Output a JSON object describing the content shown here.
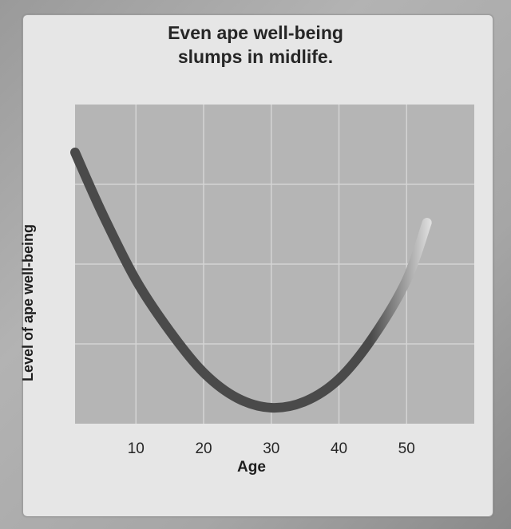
{
  "chart_data": {
    "type": "line",
    "title_lines": [
      "Even ape well-being",
      "slumps in midlife."
    ],
    "xlabel": "Age",
    "ylabel": "Level of ape well-being",
    "xlim": [
      1,
      60
    ],
    "ylim": [
      0,
      1
    ],
    "x_ticks": [
      10,
      20,
      30,
      40,
      50
    ],
    "grid": true,
    "x": [
      1,
      5,
      10,
      15,
      20,
      25,
      30,
      35,
      40,
      45,
      50,
      53
    ],
    "y": [
      0.85,
      0.66,
      0.45,
      0.29,
      0.16,
      0.08,
      0.05,
      0.07,
      0.14,
      0.27,
      0.45,
      0.63
    ],
    "colors": {
      "plot_background": "#b5b5b5",
      "line": "#4a4a4a",
      "line_end": "#ededed",
      "grid": "#d4d4d4"
    }
  }
}
